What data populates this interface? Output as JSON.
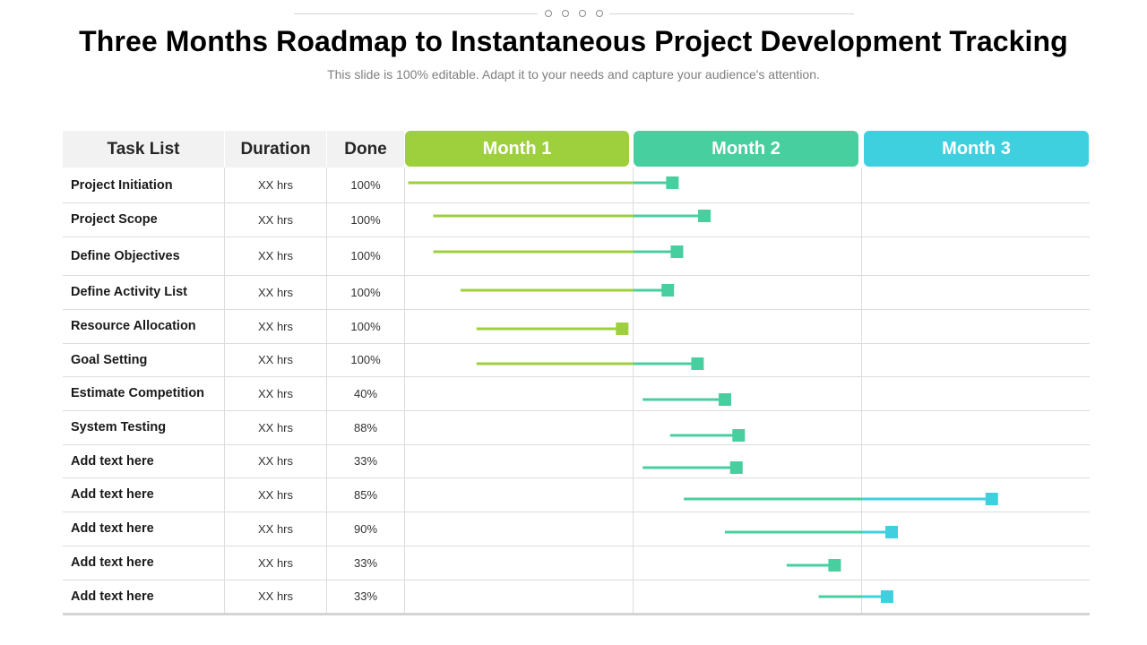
{
  "title": "Three Months Roadmap to Instantaneous Project Development Tracking",
  "subtitle": "This slide is 100% editable. Adapt it to your needs and capture your audience's attention.",
  "colors": {
    "month1": "#9ecf3c",
    "month2": "#48cf9f",
    "month3": "#3fd0e0",
    "header_bg": "#f2f2f2"
  },
  "table": {
    "headers": {
      "task": "Task List",
      "duration": "Duration",
      "done": "Done"
    },
    "months": [
      "Month 1",
      "Month 2",
      "Month 3"
    ],
    "rows": [
      {
        "task": "Project Initiation",
        "duration": "XX  hrs",
        "done": "100%"
      },
      {
        "task": "Project Scope",
        "duration": "XX  hrs",
        "done": "100%"
      },
      {
        "task": "Define Objectives",
        "duration": "XX  hrs",
        "done": "100%"
      },
      {
        "task": "Define Activity List",
        "duration": "XX  hrs",
        "done": "100%"
      },
      {
        "task": "Resource Allocation",
        "duration": "XX  hrs",
        "done": "100%"
      },
      {
        "task": "Goal Setting",
        "duration": "XX  hrs",
        "done": "100%"
      },
      {
        "task": "Estimate Competition",
        "duration": "XX  hrs",
        "done": "40%"
      },
      {
        "task": "System  Testing",
        "duration": "XX  hrs",
        "done": "88%"
      },
      {
        "task": "Add  text here",
        "duration": "XX  hrs",
        "done": "33%"
      },
      {
        "task": "Add  text here",
        "duration": "XX  hrs",
        "done": "85%"
      },
      {
        "task": "Add  text here",
        "duration": "XX  hrs",
        "done": "90%"
      },
      {
        "task": "Add  text here",
        "duration": "XX  hrs",
        "done": "33%"
      },
      {
        "task": "Add  text here",
        "duration": "XX  hrs",
        "done": "33%"
      }
    ]
  },
  "chart_data": {
    "type": "gantt",
    "x_unit": "months",
    "xlim": [
      0,
      3
    ],
    "categories": [
      "Month 1",
      "Month 2",
      "Month 3"
    ],
    "tasks": [
      {
        "name": "Project Initiation",
        "start": 0.01,
        "end": 1.17
      },
      {
        "name": "Project Scope",
        "start": 0.12,
        "end": 1.31
      },
      {
        "name": "Define Objectives",
        "start": 0.12,
        "end": 1.19
      },
      {
        "name": "Define Activity List",
        "start": 0.24,
        "end": 1.15
      },
      {
        "name": "Resource Allocation",
        "start": 0.31,
        "end": 0.95
      },
      {
        "name": "Goal Setting",
        "start": 0.31,
        "end": 1.28
      },
      {
        "name": "Estimate Competition",
        "start": 1.04,
        "end": 1.4
      },
      {
        "name": "System Testing",
        "start": 1.16,
        "end": 1.46
      },
      {
        "name": "Add text here",
        "start": 1.04,
        "end": 1.45
      },
      {
        "name": "Add text here",
        "start": 1.22,
        "end": 2.57
      },
      {
        "name": "Add text here",
        "start": 1.4,
        "end": 2.13
      },
      {
        "name": "Add text here",
        "start": 1.67,
        "end": 1.88
      },
      {
        "name": "Add text here",
        "start": 1.81,
        "end": 2.11
      }
    ]
  }
}
